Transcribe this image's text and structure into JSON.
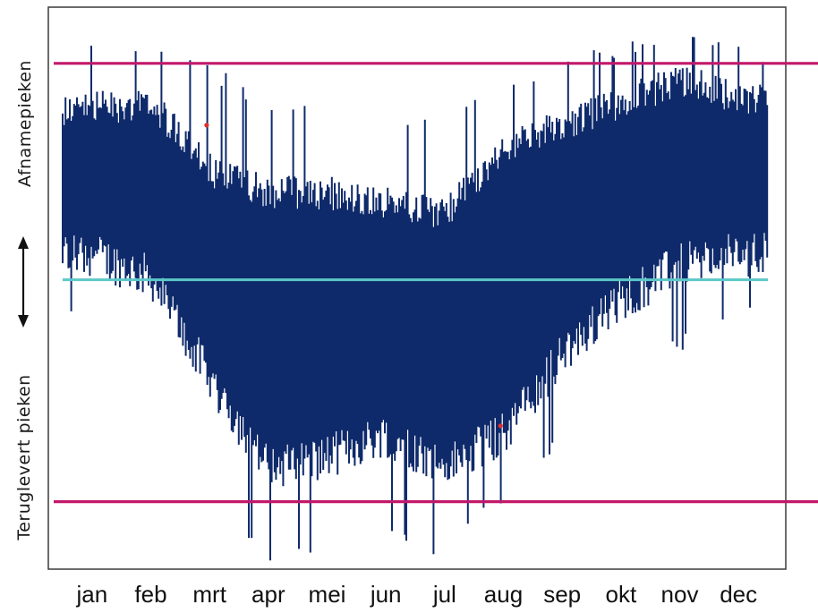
{
  "chart_data": {
    "type": "line",
    "title": "",
    "xlabel": "",
    "ylabel_top": "Afnamepieken",
    "ylabel_bottom": "Teruglevert pieken",
    "categories": [
      "jan",
      "feb",
      "mrt",
      "apr",
      "mei",
      "jun",
      "jul",
      "aug",
      "sep",
      "okt",
      "nov",
      "dec"
    ],
    "ylim": [
      0,
      1
    ],
    "grid": false,
    "series": [
      {
        "values_upper": [
          0.85,
          0.86,
          0.74,
          0.7,
          0.7,
          0.68,
          0.66,
          0.78,
          0.82,
          0.86,
          0.9,
          0.87
        ],
        "values_lower": [
          0.52,
          0.48,
          0.3,
          0.14,
          0.16,
          0.2,
          0.14,
          0.2,
          0.34,
          0.44,
          0.5,
          0.52
        ],
        "spikes_low": [
          0.44,
          0.4,
          0.12,
          0.01,
          0.0,
          0.05,
          0.02,
          0.12,
          0.22,
          0.36,
          0.38,
          0.44
        ],
        "spikes_high": [
          0.94,
          0.94,
          0.9,
          0.84,
          0.83,
          0.8,
          0.8,
          0.87,
          0.92,
          0.93,
          0.98,
          0.93
        ]
      }
    ],
    "reference_lines": [
      {
        "value": 0.9,
        "color": "#c2186b"
      },
      {
        "value": 0.515,
        "color": "#5bc8c8"
      },
      {
        "value": 0.12,
        "color": "#c2186b"
      }
    ],
    "outliers": [
      {
        "month": "mrt",
        "value": 0.79
      },
      {
        "month": "aug",
        "value": 0.255
      }
    ],
    "colors": {
      "series": "#0e2a6b",
      "limit": "#c2186b",
      "mean": "#5bc8c8",
      "outlier": "#e0302a"
    },
    "arrow_icon": "double-vertical-arrow-icon"
  }
}
